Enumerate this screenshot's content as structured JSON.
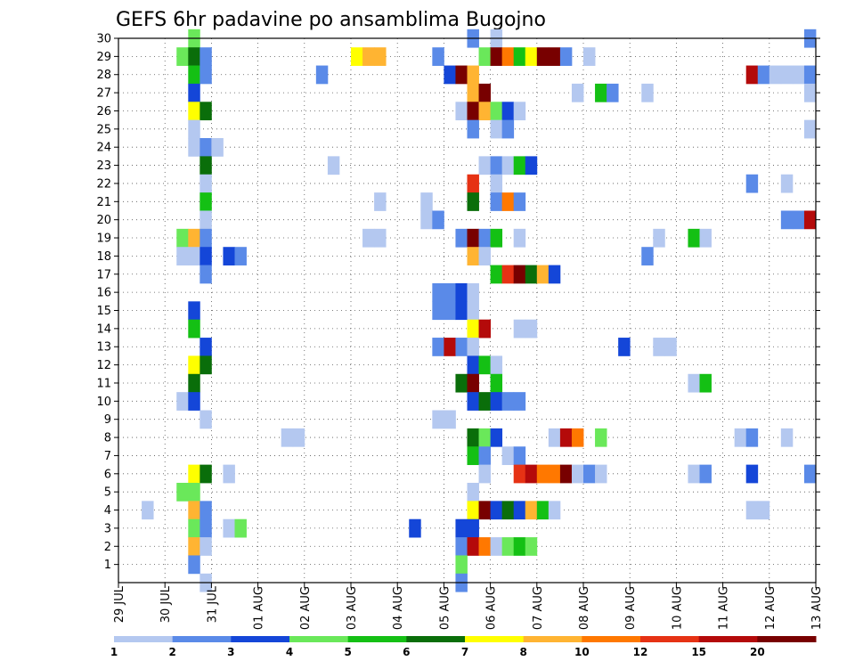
{
  "chart_data": {
    "type": "heatmap",
    "title": "GEFS 6hr padavine po ansamblima Bugojno",
    "xlabel": "",
    "ylabel": "",
    "x_ticks": [
      "29 JUL",
      "30 JUL",
      "31 JUL",
      "01 AUG",
      "02 AUG",
      "03 AUG",
      "04 AUG",
      "05 AUG",
      "06 AUG",
      "07 AUG",
      "08 AUG",
      "09 AUG",
      "10 AUG",
      "11 AUG",
      "12 AUG",
      "13 AUG"
    ],
    "y_ticks": [
      1,
      2,
      3,
      4,
      5,
      6,
      7,
      8,
      9,
      10,
      11,
      12,
      13,
      14,
      15,
      16,
      17,
      18,
      19,
      20,
      21,
      22,
      23,
      24,
      25,
      26,
      27,
      28,
      29,
      30
    ],
    "y_range": [
      0,
      30
    ],
    "x_range_steps": [
      0,
      60
    ],
    "grid": true,
    "colorbar": {
      "labels": [
        "1",
        "2",
        "3",
        "4",
        "5",
        "6",
        "7",
        "8",
        "10",
        "12",
        "15",
        "20"
      ],
      "colors": [
        "#b4c8f0",
        "#5a8ae8",
        "#1446d8",
        "#6ae85a",
        "#14c014",
        "#0a6e0a",
        "#ffff00",
        "#ffb432",
        "#ff7800",
        "#e63214",
        "#b40a0a",
        "#780000"
      ]
    },
    "cells": [
      [
        6,
        30,
        4
      ],
      [
        30,
        30,
        2
      ],
      [
        59,
        30,
        2
      ],
      [
        32,
        30,
        1
      ],
      [
        5,
        29,
        4
      ],
      [
        6,
        29,
        6
      ],
      [
        7,
        29,
        2
      ],
      [
        20,
        29,
        7
      ],
      [
        21,
        29,
        8
      ],
      [
        22,
        29,
        8
      ],
      [
        27,
        29,
        2
      ],
      [
        31,
        29,
        4
      ],
      [
        32,
        29,
        12
      ],
      [
        33,
        29,
        9
      ],
      [
        34,
        29,
        5
      ],
      [
        35,
        29,
        7
      ],
      [
        36,
        29,
        12
      ],
      [
        37,
        29,
        12
      ],
      [
        38,
        29,
        2
      ],
      [
        40,
        29,
        1
      ],
      [
        6,
        28,
        5
      ],
      [
        7,
        28,
        2
      ],
      [
        17,
        28,
        2
      ],
      [
        28,
        28,
        3
      ],
      [
        29,
        28,
        12
      ],
      [
        30,
        28,
        8
      ],
      [
        54,
        28,
        11
      ],
      [
        55,
        28,
        2
      ],
      [
        56,
        28,
        1
      ],
      [
        57,
        28,
        1
      ],
      [
        58,
        28,
        1
      ],
      [
        59,
        28,
        2
      ],
      [
        6,
        27,
        3
      ],
      [
        30,
        27,
        8
      ],
      [
        31,
        27,
        12
      ],
      [
        39,
        27,
        1
      ],
      [
        41,
        27,
        5
      ],
      [
        42,
        27,
        2
      ],
      [
        45,
        27,
        1
      ],
      [
        59,
        27,
        1
      ],
      [
        6,
        26,
        7
      ],
      [
        7,
        26,
        6
      ],
      [
        29,
        26,
        1
      ],
      [
        30,
        26,
        12
      ],
      [
        31,
        26,
        8
      ],
      [
        32,
        26,
        4
      ],
      [
        33,
        26,
        3
      ],
      [
        34,
        26,
        1
      ],
      [
        6,
        25,
        1
      ],
      [
        30,
        25,
        2
      ],
      [
        32,
        25,
        1
      ],
      [
        33,
        25,
        2
      ],
      [
        59,
        25,
        1
      ],
      [
        6,
        24,
        1
      ],
      [
        7,
        24,
        2
      ],
      [
        8,
        24,
        1
      ],
      [
        7,
        23,
        6
      ],
      [
        18,
        23,
        1
      ],
      [
        31,
        23,
        1
      ],
      [
        32,
        23,
        2
      ],
      [
        33,
        23,
        1
      ],
      [
        34,
        23,
        5
      ],
      [
        35,
        23,
        3
      ],
      [
        7,
        22,
        1
      ],
      [
        30,
        22,
        10
      ],
      [
        32,
        22,
        1
      ],
      [
        54,
        22,
        2
      ],
      [
        57,
        22,
        1
      ],
      [
        7,
        21,
        5
      ],
      [
        22,
        21,
        1
      ],
      [
        26,
        21,
        1
      ],
      [
        30,
        21,
        6
      ],
      [
        32,
        21,
        2
      ],
      [
        33,
        21,
        9
      ],
      [
        34,
        21,
        2
      ],
      [
        7,
        20,
        1
      ],
      [
        26,
        20,
        1
      ],
      [
        27,
        20,
        2
      ],
      [
        57,
        20,
        2
      ],
      [
        58,
        20,
        2
      ],
      [
        59,
        20,
        11
      ],
      [
        5,
        19,
        4
      ],
      [
        6,
        19,
        8
      ],
      [
        7,
        19,
        2
      ],
      [
        21,
        19,
        1
      ],
      [
        22,
        19,
        1
      ],
      [
        29,
        19,
        2
      ],
      [
        30,
        19,
        12
      ],
      [
        31,
        19,
        2
      ],
      [
        32,
        19,
        5
      ],
      [
        34,
        19,
        1
      ],
      [
        46,
        19,
        1
      ],
      [
        49,
        19,
        5
      ],
      [
        50,
        19,
        1
      ],
      [
        5,
        18,
        1
      ],
      [
        6,
        18,
        1
      ],
      [
        7,
        18,
        3
      ],
      [
        9,
        18,
        3
      ],
      [
        10,
        18,
        2
      ],
      [
        30,
        18,
        8
      ],
      [
        31,
        18,
        1
      ],
      [
        45,
        18,
        2
      ],
      [
        7,
        17,
        2
      ],
      [
        32,
        17,
        5
      ],
      [
        33,
        17,
        10
      ],
      [
        34,
        17,
        12
      ],
      [
        35,
        17,
        6
      ],
      [
        36,
        17,
        8
      ],
      [
        37,
        17,
        3
      ],
      [
        27,
        16,
        2
      ],
      [
        28,
        16,
        2
      ],
      [
        29,
        16,
        3
      ],
      [
        30,
        16,
        1
      ],
      [
        6,
        15,
        3
      ],
      [
        27,
        15,
        2
      ],
      [
        28,
        15,
        2
      ],
      [
        29,
        15,
        3
      ],
      [
        30,
        15,
        1
      ],
      [
        6,
        14,
        5
      ],
      [
        30,
        14,
        7
      ],
      [
        31,
        14,
        11
      ],
      [
        34,
        14,
        1
      ],
      [
        35,
        14,
        1
      ],
      [
        7,
        13,
        3
      ],
      [
        27,
        13,
        2
      ],
      [
        28,
        13,
        11
      ],
      [
        29,
        13,
        2
      ],
      [
        30,
        13,
        1
      ],
      [
        43,
        13,
        3
      ],
      [
        46,
        13,
        1
      ],
      [
        47,
        13,
        1
      ],
      [
        6,
        12,
        7
      ],
      [
        7,
        12,
        6
      ],
      [
        30,
        12,
        3
      ],
      [
        31,
        12,
        5
      ],
      [
        32,
        12,
        1
      ],
      [
        6,
        11,
        6
      ],
      [
        29,
        11,
        6
      ],
      [
        30,
        11,
        12
      ],
      [
        32,
        11,
        5
      ],
      [
        49,
        11,
        1
      ],
      [
        50,
        11,
        5
      ],
      [
        5,
        10,
        1
      ],
      [
        6,
        10,
        3
      ],
      [
        30,
        10,
        3
      ],
      [
        31,
        10,
        6
      ],
      [
        32,
        10,
        3
      ],
      [
        33,
        10,
        2
      ],
      [
        34,
        10,
        2
      ],
      [
        7,
        9,
        1
      ],
      [
        27,
        9,
        1
      ],
      [
        28,
        9,
        1
      ],
      [
        14,
        8,
        1
      ],
      [
        15,
        8,
        1
      ],
      [
        30,
        8,
        6
      ],
      [
        31,
        8,
        4
      ],
      [
        32,
        8,
        3
      ],
      [
        37,
        8,
        1
      ],
      [
        38,
        8,
        11
      ],
      [
        39,
        8,
        9
      ],
      [
        41,
        8,
        4
      ],
      [
        53,
        8,
        1
      ],
      [
        54,
        8,
        2
      ],
      [
        57,
        8,
        1
      ],
      [
        30,
        7,
        5
      ],
      [
        31,
        7,
        2
      ],
      [
        33,
        7,
        1
      ],
      [
        34,
        7,
        2
      ],
      [
        6,
        6,
        7
      ],
      [
        7,
        6,
        6
      ],
      [
        9,
        6,
        1
      ],
      [
        31,
        6,
        1
      ],
      [
        34,
        6,
        10
      ],
      [
        35,
        6,
        11
      ],
      [
        36,
        6,
        9
      ],
      [
        37,
        6,
        9
      ],
      [
        38,
        6,
        12
      ],
      [
        39,
        6,
        1
      ],
      [
        40,
        6,
        2
      ],
      [
        41,
        6,
        1
      ],
      [
        49,
        6,
        1
      ],
      [
        50,
        6,
        2
      ],
      [
        54,
        6,
        3
      ],
      [
        59,
        6,
        2
      ],
      [
        5,
        5,
        4
      ],
      [
        6,
        5,
        4
      ],
      [
        30,
        5,
        1
      ],
      [
        2,
        4,
        1
      ],
      [
        6,
        4,
        8
      ],
      [
        7,
        4,
        2
      ],
      [
        30,
        4,
        7
      ],
      [
        31,
        4,
        12
      ],
      [
        32,
        4,
        3
      ],
      [
        33,
        4,
        6
      ],
      [
        34,
        4,
        3
      ],
      [
        35,
        4,
        8
      ],
      [
        36,
        4,
        5
      ],
      [
        37,
        4,
        1
      ],
      [
        54,
        4,
        1
      ],
      [
        55,
        4,
        1
      ],
      [
        6,
        3,
        4
      ],
      [
        7,
        3,
        2
      ],
      [
        9,
        3,
        1
      ],
      [
        10,
        3,
        4
      ],
      [
        25,
        3,
        3
      ],
      [
        29,
        3,
        3
      ],
      [
        30,
        3,
        3
      ],
      [
        6,
        2,
        8
      ],
      [
        7,
        2,
        1
      ],
      [
        29,
        2,
        2
      ],
      [
        30,
        2,
        11
      ],
      [
        31,
        2,
        9
      ],
      [
        32,
        2,
        1
      ],
      [
        33,
        2,
        4
      ],
      [
        34,
        2,
        5
      ],
      [
        35,
        2,
        4
      ],
      [
        6,
        1,
        2
      ],
      [
        29,
        1,
        4
      ],
      [
        7,
        0,
        1
      ],
      [
        29,
        0,
        2
      ]
    ]
  }
}
